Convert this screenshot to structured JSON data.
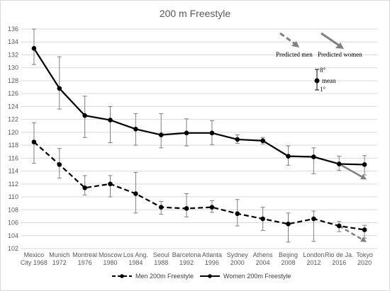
{
  "chart_data": {
    "type": "line",
    "title": "200 m Freestyle",
    "categories": [
      [
        "Mexico",
        "City 1968"
      ],
      [
        "Munich",
        "1972"
      ],
      [
        "Montreal",
        "1976"
      ],
      [
        "Moscow",
        "1980"
      ],
      [
        "Los Ang.",
        "1984"
      ],
      [
        "Seoul",
        "1988"
      ],
      [
        "Barcelona",
        "1992"
      ],
      [
        "Atlanta",
        "1996"
      ],
      [
        "Sydney",
        "2000"
      ],
      [
        "Athens",
        "2004"
      ],
      [
        "Beijing",
        "2008"
      ],
      [
        "London",
        "2012"
      ],
      [
        "Rio de Ja.",
        "2016"
      ],
      [
        "Tokyo",
        "2020"
      ]
    ],
    "ylim": [
      102,
      136
    ],
    "yticks": [
      102,
      104,
      106,
      108,
      110,
      112,
      114,
      116,
      118,
      120,
      122,
      124,
      126,
      128,
      130,
      132,
      134,
      136
    ],
    "grid": true,
    "legend_position": "bottom",
    "series": [
      {
        "name": "Men 200m Freestyle",
        "style": "dashed",
        "color": "#000000",
        "values": [
          118.5,
          115.0,
          111.4,
          112.0,
          110.5,
          108.4,
          108.2,
          108.4,
          107.4,
          106.6,
          105.8,
          106.6,
          105.5,
          104.9
        ],
        "err_low": [
          115.2,
          112.9,
          110.3,
          110.0,
          107.5,
          107.3,
          106.9,
          107.6,
          105.5,
          104.8,
          103.0,
          103.1,
          104.6,
          103.6
        ],
        "err_high": [
          121.5,
          117.5,
          113.3,
          113.3,
          113.8,
          109.3,
          110.5,
          109.4,
          109.6,
          108.4,
          107.5,
          107.8,
          106.2,
          105.6
        ],
        "predicted_end": 103.0
      },
      {
        "name": "Women 200m Freestyle",
        "style": "solid",
        "color": "#000000",
        "values": [
          133.0,
          126.8,
          122.6,
          121.9,
          120.5,
          119.6,
          119.9,
          119.9,
          118.9,
          118.7,
          116.3,
          116.2,
          115.1,
          115.0
        ],
        "err_low": [
          130.5,
          123.6,
          119.2,
          118.4,
          118.0,
          117.6,
          117.9,
          118.1,
          118.3,
          118.2,
          114.9,
          113.6,
          114.1,
          113.4
        ],
        "err_high": [
          136.0,
          131.7,
          125.6,
          124.0,
          122.9,
          122.9,
          122.1,
          121.8,
          119.6,
          119.2,
          117.9,
          117.6,
          116.3,
          116.4
        ],
        "predicted_end": 112.7
      }
    ],
    "key": {
      "predicted_men": "Predicted men",
      "predicted_women": "Predicted women",
      "upper": "8°",
      "mean": "mean",
      "lower": "1°",
      "predicted_men_color": "#808080",
      "predicted_women_color": "#808080"
    }
  }
}
